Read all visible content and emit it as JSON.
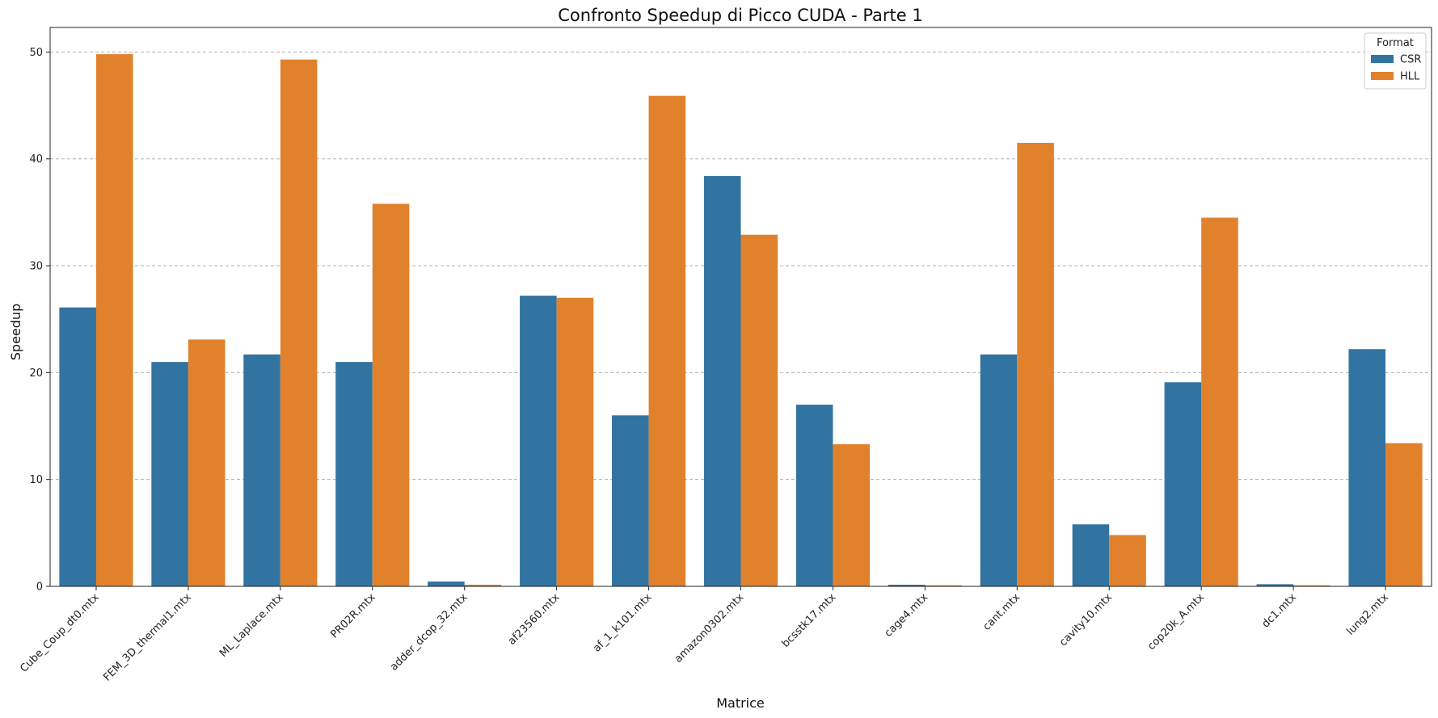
{
  "chart_data": {
    "type": "bar",
    "title": "Confronto Speedup di Picco CUDA - Parte 1",
    "xlabel": "Matrice",
    "ylabel": "Speedup",
    "ylim": [
      0,
      52.3
    ],
    "yticks": [
      0,
      10,
      20,
      30,
      40,
      50
    ],
    "grid": "y-dashed",
    "legend": {
      "title": "Format",
      "placement": "top-right"
    },
    "categories": [
      "Cube_Coup_dt0.mtx",
      "FEM_3D_thermal1.mtx",
      "ML_Laplace.mtx",
      "PR02R.mtx",
      "adder_dcop_32.mtx",
      "af23560.mtx",
      "af_1_k101.mtx",
      "amazon0302.mtx",
      "bcsstk17.mtx",
      "cage4.mtx",
      "cant.mtx",
      "cavity10.mtx",
      "cop20k_A.mtx",
      "dc1.mtx",
      "lung2.mtx"
    ],
    "series": [
      {
        "name": "CSR",
        "color": "#3274a1",
        "values": [
          26.1,
          21.0,
          21.7,
          21.0,
          0.45,
          27.2,
          16.0,
          38.4,
          17.0,
          0.15,
          21.7,
          5.8,
          19.1,
          0.2,
          22.2
        ]
      },
      {
        "name": "HLL",
        "color": "#e1812c",
        "values": [
          49.8,
          23.1,
          49.3,
          35.8,
          0.15,
          27.0,
          45.9,
          32.9,
          13.3,
          0.1,
          41.5,
          4.8,
          34.5,
          0.1,
          13.4
        ]
      }
    ]
  }
}
